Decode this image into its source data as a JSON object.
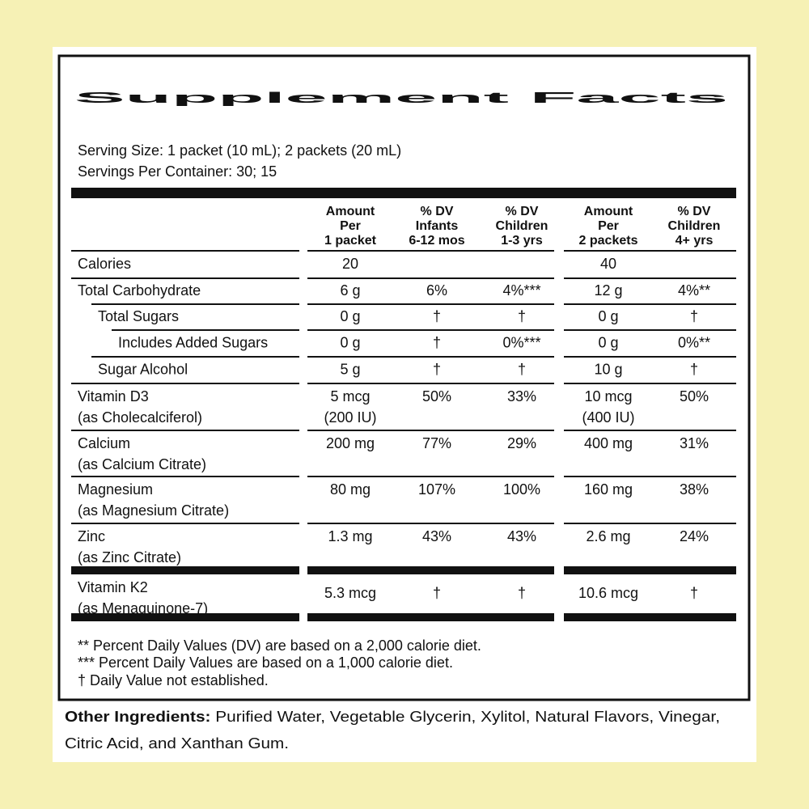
{
  "title": "Supplement Facts",
  "serving_size": "Serving Size: 1 packet (10 mL); 2 packets (20 mL)",
  "servings_per_container": "Servings Per Container: 30; 15",
  "table": {
    "headers": [
      [
        "Amount",
        "Per",
        "1 packet"
      ],
      [
        "% DV",
        "Infants",
        "6-12 mos"
      ],
      [
        "% DV",
        "Children",
        "1-3 yrs"
      ],
      [
        "Amount",
        "Per",
        "2 packets"
      ],
      [
        "% DV",
        "Children",
        "4+ yrs"
      ]
    ],
    "rows": [
      [
        [
          "Calories"
        ],
        [
          "20"
        ],
        [],
        [],
        [
          "40"
        ],
        []
      ],
      [
        [
          "Total Carbohydrate"
        ],
        [
          "6 g"
        ],
        [
          "6%"
        ],
        [
          "4%***"
        ],
        [
          "12 g"
        ],
        [
          "4%**"
        ]
      ],
      [
        [
          "Total Sugars"
        ],
        [
          "0 g"
        ],
        [
          "†"
        ],
        [
          "†"
        ],
        [
          "0 g"
        ],
        [
          "†"
        ]
      ],
      [
        [
          "Includes Added Sugars"
        ],
        [
          "0 g"
        ],
        [
          "†"
        ],
        [
          "0%***"
        ],
        [
          "0 g"
        ],
        [
          "0%**"
        ]
      ],
      [
        [
          "Sugar Alcohol"
        ],
        [
          "5 g"
        ],
        [
          "†"
        ],
        [
          "†"
        ],
        [
          "10 g"
        ],
        [
          "†"
        ]
      ],
      [
        [
          "Vitamin D3",
          "(as Cholecalciferol)"
        ],
        [
          "5 mcg",
          "(200 IU)"
        ],
        [
          "50%"
        ],
        [
          "33%"
        ],
        [
          "10 mcg",
          "(400 IU)"
        ],
        [
          "50%"
        ]
      ],
      [
        [
          "Calcium",
          "(as Calcium Citrate)"
        ],
        [
          "200 mg"
        ],
        [
          "77%"
        ],
        [
          "29%"
        ],
        [
          "400 mg"
        ],
        [
          "31%"
        ]
      ],
      [
        [
          "Magnesium",
          "(as Magnesium Citrate)"
        ],
        [
          "80 mg"
        ],
        [
          "107%"
        ],
        [
          "100%"
        ],
        [
          "160 mg"
        ],
        [
          "38%"
        ]
      ],
      [
        [
          "Zinc",
          "(as Zinc Citrate)"
        ],
        [
          "1.3 mg"
        ],
        [
          "43%"
        ],
        [
          "43%"
        ],
        [
          "2.6 mg"
        ],
        [
          "24%"
        ]
      ],
      [
        [
          "Vitamin K2",
          "(as Menaquinone-7)"
        ],
        [
          "5.3 mcg"
        ],
        [
          "†"
        ],
        [
          "†"
        ],
        [
          "10.6 mcg"
        ],
        [
          "†"
        ]
      ]
    ]
  },
  "footnotes": [
    "** Percent Daily Values (DV) are based on a 2,000 calorie diet.",
    "*** Percent Daily Values are based on a 1,000 calorie diet.",
    "† Daily Value not established."
  ],
  "other_ingredients": {
    "label": "Other Ingredients:",
    "text": " Purified Water, Vegetable Glycerin, Xylitol, Natural Flavors, Vinegar,",
    "text_2": "Citric Acid, and Xanthan Gum."
  }
}
